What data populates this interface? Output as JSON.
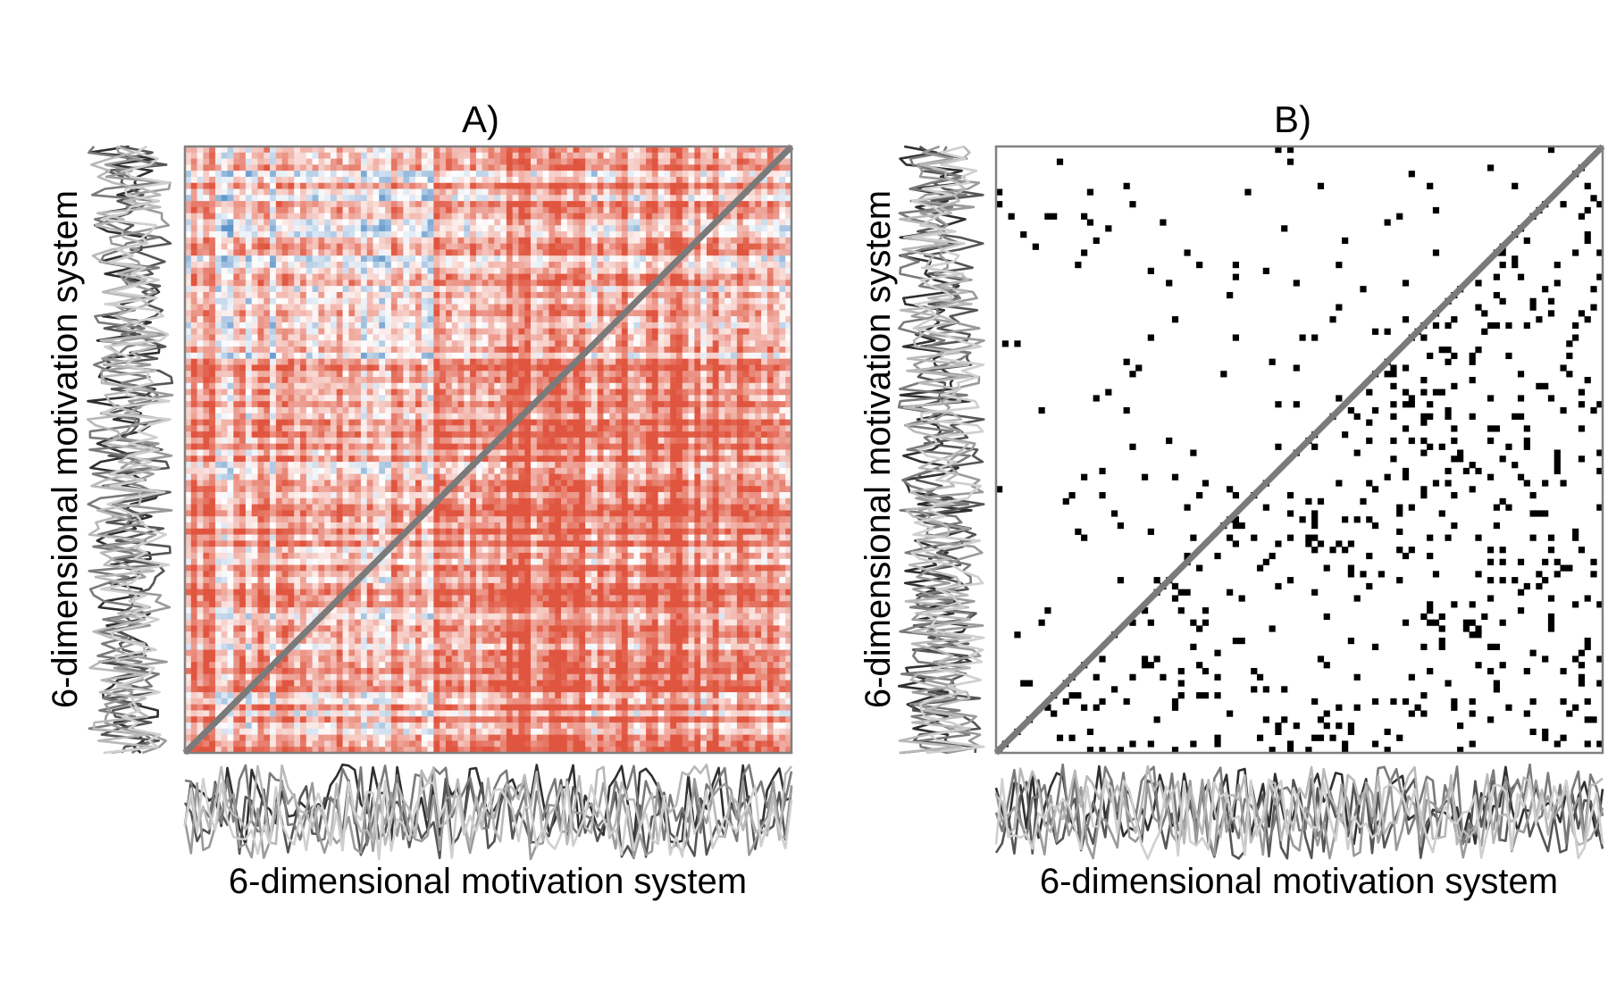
{
  "chart_data": [
    {
      "type": "heatmap",
      "title": "A)",
      "xlabel": "6-dimensional motivation system",
      "ylabel": "6-dimensional motivation system",
      "n": 100,
      "diagonal_line": true,
      "colors": {
        "positive": "#e0553f",
        "negative": "#3f7fbf",
        "neutral": "#ffffff",
        "diagonal": "#7a7a7a",
        "border": "#808080"
      }
    },
    {
      "type": "heatmap",
      "title": "B)",
      "xlabel": "6-dimensional motivation system",
      "ylabel": "6-dimensional motivation system",
      "n": 100,
      "diagonal_line": true,
      "colors": {
        "filled": "#000000",
        "empty": "#ffffff",
        "diagonal": "#7a7a7a",
        "border": "#808080"
      }
    }
  ],
  "marginal_line_colors": [
    "#2f2f2f",
    "#555555",
    "#7a7a7a",
    "#9a9a9a",
    "#b8b8b8",
    "#cfcfcf"
  ]
}
